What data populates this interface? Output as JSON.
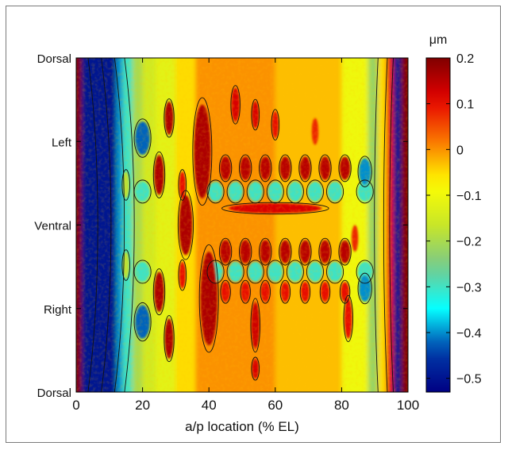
{
  "chart_data": {
    "type": "heatmap",
    "title": "",
    "xlabel": "a/p location (% EL)",
    "ylabel": "",
    "xlim": [
      0,
      100
    ],
    "x_ticks": [
      0,
      20,
      40,
      60,
      80,
      100
    ],
    "y_ticks": [
      "Dorsal",
      "Left",
      "Ventral",
      "Right",
      "Dorsal"
    ],
    "colorbar": {
      "unit": "μm",
      "range": [
        -0.53,
        0.2
      ],
      "ticks": [
        0.2,
        0.1,
        0,
        -0.1,
        -0.2,
        -0.3,
        -0.4,
        -0.5
      ],
      "tick_labels": [
        "0.2",
        "0.1",
        "0",
        "−0.1",
        "−0.2",
        "−0.3",
        "−0.4",
        "−0.5"
      ],
      "colormap": "jet"
    },
    "field_features": {
      "left_pole_trough": {
        "x_range": [
          0,
          12
        ],
        "value": -0.5
      },
      "right_pole_trough": {
        "x_range": [
          95,
          99
        ],
        "value": -0.5
      },
      "pole_edge_ridges": {
        "x": [
          0.5,
          98.5
        ],
        "value": 0.2
      },
      "stripe_x_positions": [
        15,
        20,
        25,
        28,
        33,
        38,
        43,
        48,
        54,
        60,
        66,
        72,
        78,
        82,
        87
      ],
      "background_value": -0.05
    }
  }
}
